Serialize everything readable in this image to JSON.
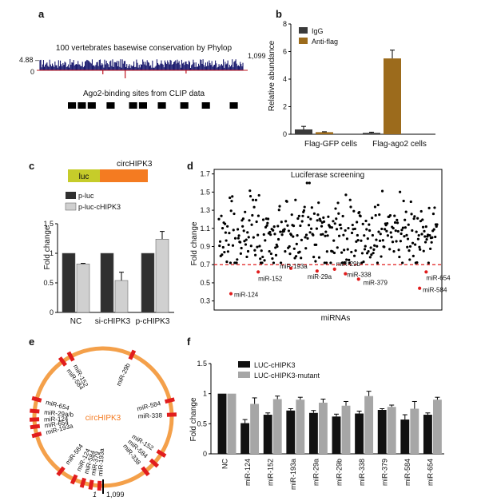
{
  "panels": {
    "a": "a",
    "b": "b",
    "c": "c",
    "d": "d",
    "e": "e",
    "f": "f"
  },
  "panel_a": {
    "track_title": "100 vertebrates basewise conservation by Phylop",
    "y_top_label": "4.88 –",
    "y_zero_label": "0",
    "x_end_label": "1,099",
    "clip_title": "Ago2-binding sites from CLIP data",
    "clip_sites": [
      [
        0.0,
        0.045
      ],
      [
        0.055,
        0.1
      ],
      [
        0.11,
        0.155
      ],
      [
        0.215,
        0.26
      ],
      [
        0.34,
        0.385
      ],
      [
        0.395,
        0.44
      ],
      [
        0.5,
        0.545
      ],
      [
        0.625,
        0.67
      ],
      [
        0.745,
        0.79
      ],
      [
        0.9,
        0.945
      ]
    ]
  },
  "chart_data": [
    {
      "panel": "b",
      "type": "bar",
      "categories": [
        "Flag-GFP cells",
        "Flag-ago2 cells"
      ],
      "series": [
        {
          "name": "IgG",
          "values": [
            0.35,
            0.1
          ],
          "errors": [
            0.22,
            0.05
          ],
          "color": "#3a3a3a"
        },
        {
          "name": "Anti-flag",
          "values": [
            0.15,
            5.5
          ],
          "errors": [
            0.03,
            0.6
          ],
          "color": "#9c6b1c"
        }
      ],
      "ylabel": "Relative abundance",
      "ylim": [
        0,
        8
      ],
      "yticks": [
        0,
        2,
        4,
        6,
        8
      ],
      "legend": "top-left"
    },
    {
      "panel": "c",
      "type": "bar",
      "categories": [
        "NC",
        "si-cHIPK3",
        "p-cHIPK3"
      ],
      "series": [
        {
          "name": "p-luc",
          "values": [
            1.0,
            1.0,
            1.0
          ],
          "errors": [
            0,
            0,
            0
          ],
          "color": "#303030"
        },
        {
          "name": "p-luc-cHIPK3",
          "values": [
            0.82,
            0.54,
            1.24
          ],
          "errors": [
            0.01,
            0.14,
            0.13
          ],
          "color": "#d0d0d0"
        }
      ],
      "ylabel": "Fold change",
      "ylim": [
        0,
        1.5
      ],
      "yticks": [
        0,
        0.5,
        1.0,
        1.5
      ],
      "legend": "top-left",
      "construct": {
        "title": "circHIPK3",
        "luc_label": "luc"
      }
    },
    {
      "panel": "d",
      "type": "scatter",
      "title": "Luciferase screening",
      "xlabel": "miRNAs",
      "ylabel": "Fold change",
      "ylim": [
        0.2,
        1.75
      ],
      "yticks": [
        0.3,
        0.5,
        0.7,
        0.9,
        1.1,
        1.3,
        1.5,
        1.7
      ],
      "threshold": 0.7,
      "n_points": 360,
      "highlighted": [
        {
          "name": "miR-124",
          "x": 0.055,
          "y": 0.38
        },
        {
          "name": "miR-152",
          "x": 0.18,
          "y": 0.62
        },
        {
          "name": "miR-193a",
          "x": 0.33,
          "y": 0.66
        },
        {
          "name": "miR-29a",
          "x": 0.45,
          "y": 0.63
        },
        {
          "name": "miR-29b",
          "x": 0.53,
          "y": 0.65
        },
        {
          "name": "miR-338",
          "x": 0.58,
          "y": 0.6
        },
        {
          "name": "miR-379",
          "x": 0.64,
          "y": 0.54
        },
        {
          "name": "miR-584",
          "x": 0.92,
          "y": 0.44
        },
        {
          "name": "miR-654",
          "x": 0.95,
          "y": 0.62
        }
      ]
    },
    {
      "panel": "f",
      "type": "bar",
      "categories": [
        "NC",
        "miR-124",
        "miR-152",
        "miR-193a",
        "miR-29a",
        "miR-29b",
        "miR-338",
        "miR-379",
        "miR-584",
        "miR-654"
      ],
      "series": [
        {
          "name": "LUC-cHIPK3",
          "values": [
            1.0,
            0.51,
            0.65,
            0.72,
            0.68,
            0.62,
            0.67,
            0.73,
            0.57,
            0.65
          ],
          "errors": [
            0,
            0.06,
            0.03,
            0.03,
            0.04,
            0.04,
            0.04,
            0.02,
            0.08,
            0.03
          ],
          "color": "#111111"
        },
        {
          "name": "LUC-cHIPK3-mutant",
          "values": [
            1.0,
            0.83,
            0.91,
            0.9,
            0.85,
            0.8,
            0.96,
            0.78,
            0.75,
            0.9
          ],
          "errors": [
            0,
            0.1,
            0.05,
            0.04,
            0.06,
            0.07,
            0.08,
            0.03,
            0.12,
            0.04
          ],
          "color": "#a6a6a6"
        }
      ],
      "ylabel": "Fold change",
      "ylim": [
        0,
        1.5
      ],
      "yticks": [
        0,
        0.5,
        1.0,
        1.5
      ],
      "legend": "top-center"
    }
  ],
  "panel_e": {
    "center_label": "circHIPK3",
    "start_label": "1",
    "end_label": "1,099",
    "ring_color": "#f4a04a",
    "site_color": "#e11d1d",
    "sites": [
      {
        "name": "miR-152",
        "angle": 332
      },
      {
        "name": "miR-584",
        "angle": 324
      },
      {
        "name": "miR-29b",
        "angle": 25
      },
      {
        "name": "miR-654",
        "angle": 285
      },
      {
        "name": "miR-29a/b",
        "angle": 275
      },
      {
        "name": "miR-124",
        "angle": 268
      },
      {
        "name": "miR-654",
        "angle": 262
      },
      {
        "name": "miR-193a",
        "angle": 255
      },
      {
        "name": "miR-584",
        "angle": 76
      },
      {
        "name": "miR-338",
        "angle": 88
      },
      {
        "name": "miR-152",
        "angle": 122
      },
      {
        "name": "miR-584",
        "angle": 132
      },
      {
        "name": "miR-338",
        "angle": 142
      },
      {
        "name": "miR-584",
        "angle": 218
      },
      {
        "name": "miR-124",
        "angle": 205
      },
      {
        "name": "miR-584",
        "angle": 197
      },
      {
        "name": "miR-379",
        "angle": 190
      },
      {
        "name": "miR-193a",
        "angle": 183
      }
    ]
  }
}
